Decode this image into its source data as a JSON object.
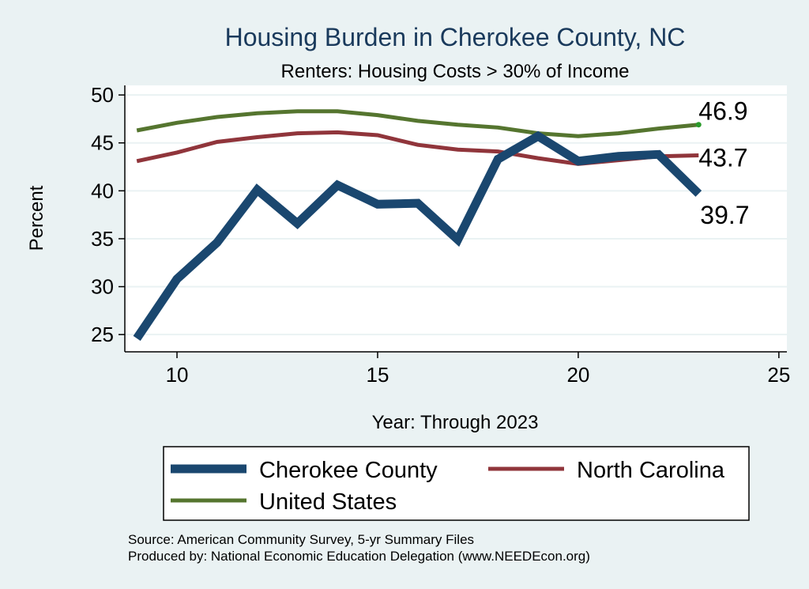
{
  "chart_data": {
    "type": "line",
    "title": "Housing Burden in Cherokee County, NC",
    "subtitle": "Renters: Housing Costs > 30% of Income",
    "xlabel": "Year: Through 2023",
    "ylabel": "Percent",
    "xlim": [
      8.7,
      25.2
    ],
    "ylim": [
      23.2,
      51
    ],
    "xticks": [
      10,
      15,
      20,
      25
    ],
    "yticks": [
      25,
      30,
      35,
      40,
      45,
      50
    ],
    "grid": true,
    "x": [
      9,
      10,
      11,
      12,
      13,
      14,
      15,
      16,
      17,
      18,
      19,
      20,
      21,
      22,
      23
    ],
    "series": [
      {
        "name": "Cherokee County",
        "color": "#1a476f",
        "values": [
          24.6,
          30.8,
          34.6,
          40.1,
          36.6,
          40.6,
          38.6,
          38.7,
          34.9,
          43.3,
          45.7,
          43.1,
          43.6,
          43.8,
          39.7
        ],
        "end_label": "39.7"
      },
      {
        "name": "North Carolina",
        "color": "#90353b",
        "values": [
          43.1,
          44.0,
          45.1,
          45.6,
          46.0,
          46.1,
          45.8,
          44.8,
          44.3,
          44.1,
          43.4,
          42.8,
          43.2,
          43.6,
          43.7
        ],
        "end_label": "43.7"
      },
      {
        "name": "United States",
        "color": "#55752f",
        "values": [
          46.3,
          47.1,
          47.7,
          48.1,
          48.3,
          48.3,
          47.9,
          47.3,
          46.9,
          46.6,
          46.0,
          45.7,
          46.0,
          46.5,
          46.9
        ],
        "end_label": "46.9"
      }
    ],
    "legend_position": "bottom"
  },
  "source": {
    "line1": "Source: American Community Survey, 5-yr Summary Files",
    "line2": "Produced by: National Economic Education Delegation (www.NEEDEcon.org)"
  }
}
